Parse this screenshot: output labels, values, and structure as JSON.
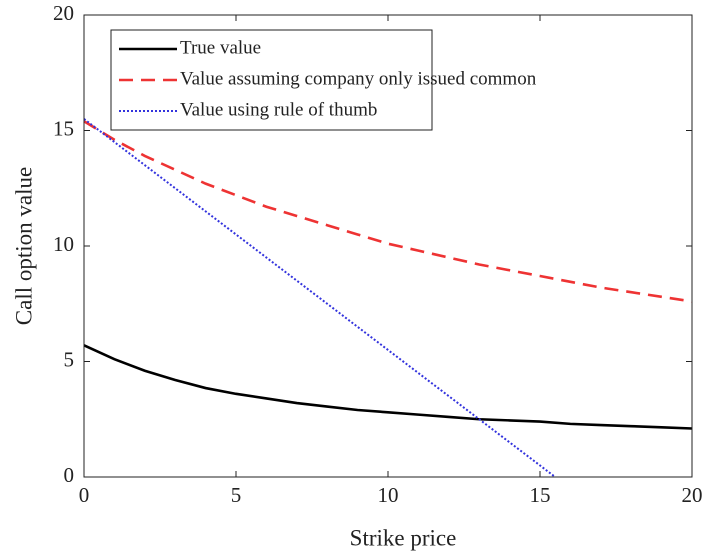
{
  "chart_data": {
    "type": "line",
    "xlabel": "Strike price",
    "ylabel": "Call option value",
    "xlim": [
      0,
      20
    ],
    "xticks": [
      0,
      5,
      10,
      15,
      20
    ],
    "ylim": [
      0,
      20
    ],
    "yticks": [
      0,
      5,
      10,
      15,
      20
    ],
    "legend": "top-left",
    "series": [
      {
        "name": "True value",
        "color": "#000000",
        "dash": "solid",
        "x": [
          0,
          1,
          2,
          3,
          4,
          5,
          6,
          7,
          8,
          9,
          10,
          11,
          12,
          13,
          14,
          15,
          16,
          17,
          18,
          19,
          20
        ],
        "values": [
          5.7,
          5.1,
          4.6,
          4.2,
          3.85,
          3.6,
          3.4,
          3.2,
          3.05,
          2.9,
          2.8,
          2.7,
          2.6,
          2.5,
          2.45,
          2.4,
          2.3,
          2.25,
          2.2,
          2.15,
          2.1
        ]
      },
      {
        "name": "Value assuming company only issued common",
        "color": "#ee3333",
        "dash": "dashed",
        "x": [
          0,
          1,
          2,
          3,
          4,
          5,
          6,
          7,
          8,
          9,
          10,
          11,
          12,
          13,
          14,
          15,
          16,
          17,
          18,
          19,
          20
        ],
        "values": [
          15.4,
          14.6,
          13.9,
          13.3,
          12.7,
          12.2,
          11.7,
          11.3,
          10.9,
          10.5,
          10.1,
          9.8,
          9.5,
          9.2,
          8.95,
          8.7,
          8.45,
          8.2,
          8.0,
          7.8,
          7.6
        ]
      },
      {
        "name": "Value using rule of thumb",
        "color": "#3333dd",
        "dash": "dotted",
        "x": [
          0,
          15.5
        ],
        "values": [
          15.5,
          0
        ]
      }
    ]
  }
}
